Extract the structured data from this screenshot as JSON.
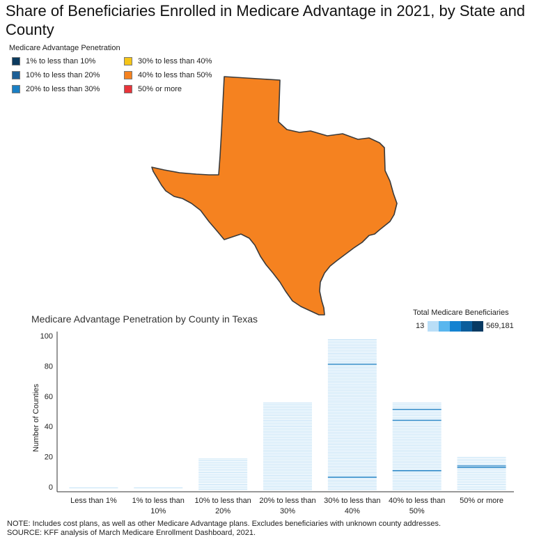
{
  "page": {
    "title": "Share of Beneficiaries Enrolled in Medicare Advantage in 2021, by State and County",
    "note": "NOTE: Includes cost plans, as well as other Medicare Advantage plans. Excludes beneficiaries with unknown county addresses.",
    "source": "SOURCE: KFF analysis of March Medicare Enrollment Dashboard, 2021."
  },
  "legend": {
    "title": "Medicare Advantage Penetration",
    "items": [
      {
        "label": "1% to less than 10%",
        "color": "#0b3a5e"
      },
      {
        "label": "10% to less than 20%",
        "color": "#1d5f96"
      },
      {
        "label": "20% to less than 30%",
        "color": "#1a7fc4"
      },
      {
        "label": "30% to less than 40%",
        "color": "#f5c518"
      },
      {
        "label": "40% to less than 50%",
        "color": "#f58220"
      },
      {
        "label": "50% or more",
        "color": "#e8343a"
      }
    ]
  },
  "map": {
    "state": "Texas",
    "fill": "#f58220",
    "category": "40% to less than 50%"
  },
  "scale": {
    "title": "Total Medicare Beneficiaries",
    "min": "13",
    "max": "569,181",
    "colors": [
      "#b9def7",
      "#59b6ee",
      "#1482d1",
      "#0a5d9c",
      "#083a63"
    ]
  },
  "chart_data": {
    "type": "bar",
    "title": "Medicare Advantage Penetration by County in Texas",
    "ylabel": "Number of Counties",
    "xlabel": "",
    "categories": [
      "Less than 1%",
      "1% to less than 10%",
      "10% to less than 20%",
      "20% to less than 30%",
      "30% to less than 40%",
      "40% to less than 50%",
      "50% or more"
    ],
    "values": [
      1,
      1,
      19,
      56,
      98,
      56,
      20
    ],
    "highlighted_rows": [
      [],
      [],
      [],
      [],
      [
        8,
        81
      ],
      [
        12,
        44,
        51
      ],
      [
        13,
        14
      ]
    ],
    "ylim": [
      0,
      100
    ],
    "yticks": [
      0,
      20,
      40,
      60,
      80,
      100
    ],
    "bar_color": "#bfe0f6",
    "highlight_color": "#1a7fc4",
    "grid": false
  }
}
